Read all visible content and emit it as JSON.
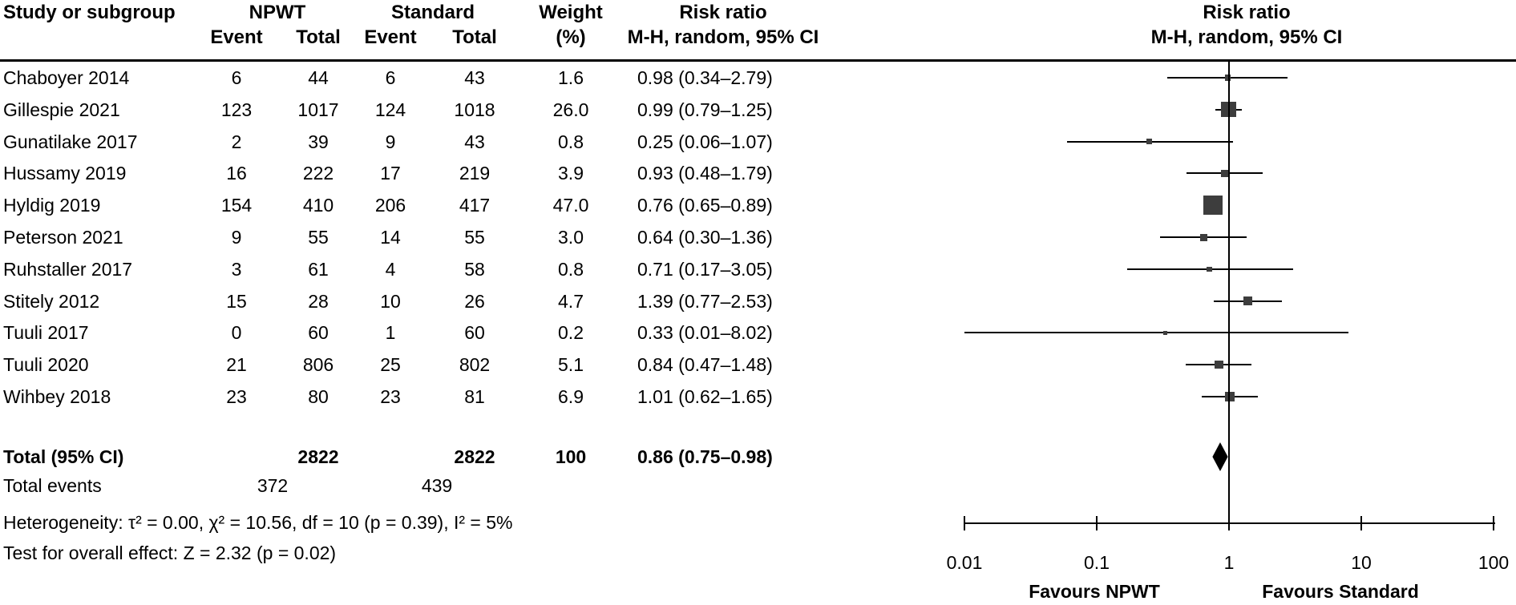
{
  "header": {
    "study": "Study or subgroup",
    "group1": "NPWT",
    "group2": "Standard",
    "event1": "Event",
    "total1": "Total",
    "event2": "Event",
    "total2": "Total",
    "weight_line1": "Weight",
    "weight_line2": "(%)",
    "rr_col_line1": "Risk ratio",
    "rr_col_line2": "M-H, random, 95% CI",
    "plot_col_line1": "Risk ratio",
    "plot_col_line2": "M-H, random, 95% CI"
  },
  "chart_data": {
    "type": "forest",
    "x_scale": "log10",
    "x_range": [
      0.01,
      100
    ],
    "axis_ticks": [
      0.01,
      0.1,
      1,
      10,
      100
    ],
    "axis_tick_labels": [
      "0.01",
      "0.1",
      "1",
      "10",
      "100"
    ],
    "null_line_value": 1,
    "favours_left": "Favours NPWT",
    "favours_right": "Favours Standard",
    "studies": [
      {
        "name": "Chaboyer 2014",
        "e1": "6",
        "t1": "44",
        "e2": "6",
        "t2": "43",
        "weight": "1.6",
        "rr_text": "0.98 (0.34–2.79)",
        "rr": 0.98,
        "lo": 0.34,
        "hi": 2.79
      },
      {
        "name": "Gillespie 2021",
        "e1": "123",
        "t1": "1017",
        "e2": "124",
        "t2": "1018",
        "weight": "26.0",
        "rr_text": "0.99 (0.79–1.25)",
        "rr": 0.99,
        "lo": 0.79,
        "hi": 1.25
      },
      {
        "name": "Gunatilake 2017",
        "e1": "2",
        "t1": "39",
        "e2": "9",
        "t2": "43",
        "weight": "0.8",
        "rr_text": "0.25 (0.06–1.07)",
        "rr": 0.25,
        "lo": 0.06,
        "hi": 1.07
      },
      {
        "name": "Hussamy 2019",
        "e1": "16",
        "t1": "222",
        "e2": "17",
        "t2": "219",
        "weight": "3.9",
        "rr_text": "0.93 (0.48–1.79)",
        "rr": 0.93,
        "lo": 0.48,
        "hi": 1.79
      },
      {
        "name": "Hyldig 2019",
        "e1": "154",
        "t1": "410",
        "e2": "206",
        "t2": "417",
        "weight": "47.0",
        "rr_text": "0.76 (0.65–0.89)",
        "rr": 0.76,
        "lo": 0.65,
        "hi": 0.89
      },
      {
        "name": "Peterson 2021",
        "e1": "9",
        "t1": "55",
        "e2": "14",
        "t2": "55",
        "weight": "3.0",
        "rr_text": "0.64 (0.30–1.36)",
        "rr": 0.64,
        "lo": 0.3,
        "hi": 1.36
      },
      {
        "name": "Ruhstaller 2017",
        "e1": "3",
        "t1": "61",
        "e2": "4",
        "t2": "58",
        "weight": "0.8",
        "rr_text": "0.71 (0.17–3.05)",
        "rr": 0.71,
        "lo": 0.17,
        "hi": 3.05
      },
      {
        "name": "Stitely 2012",
        "e1": "15",
        "t1": "28",
        "e2": "10",
        "t2": "26",
        "weight": "4.7",
        "rr_text": "1.39 (0.77–2.53)",
        "rr": 1.39,
        "lo": 0.77,
        "hi": 2.53
      },
      {
        "name": "Tuuli 2017",
        "e1": "0",
        "t1": "60",
        "e2": "1",
        "t2": "60",
        "weight": "0.2",
        "rr_text": "0.33 (0.01–8.02)",
        "rr": 0.33,
        "lo": 0.01,
        "hi": 8.02
      },
      {
        "name": "Tuuli 2020",
        "e1": "21",
        "t1": "806",
        "e2": "25",
        "t2": "802",
        "weight": "5.1",
        "rr_text": "0.84 (0.47–1.48)",
        "rr": 0.84,
        "lo": 0.47,
        "hi": 1.48
      },
      {
        "name": "Wihbey 2018",
        "e1": "23",
        "t1": "80",
        "e2": "23",
        "t2": "81",
        "weight": "6.9",
        "rr_text": "1.01 (0.62–1.65)",
        "rr": 1.01,
        "lo": 0.62,
        "hi": 1.65
      }
    ],
    "total": {
      "label": "Total (95% CI)",
      "t1": "2822",
      "t2": "2822",
      "weight": "100",
      "rr_text": "0.86 (0.75–0.98)",
      "rr": 0.86,
      "lo": 0.75,
      "hi": 0.98
    },
    "total_events": {
      "label": "Total events",
      "e1": "372",
      "e2": "439"
    },
    "heterogeneity": "Heterogeneity:  τ² = 0.00, χ² = 10.56, df = 10 (p = 0.39), I² = 5%",
    "overall_effect": "Test for overall effect: Z = 2.32 (p = 0.02)"
  },
  "colors": {
    "square": "#3d3d3d",
    "line": "#000000",
    "diamond": "#000000",
    "text": "#000000"
  }
}
